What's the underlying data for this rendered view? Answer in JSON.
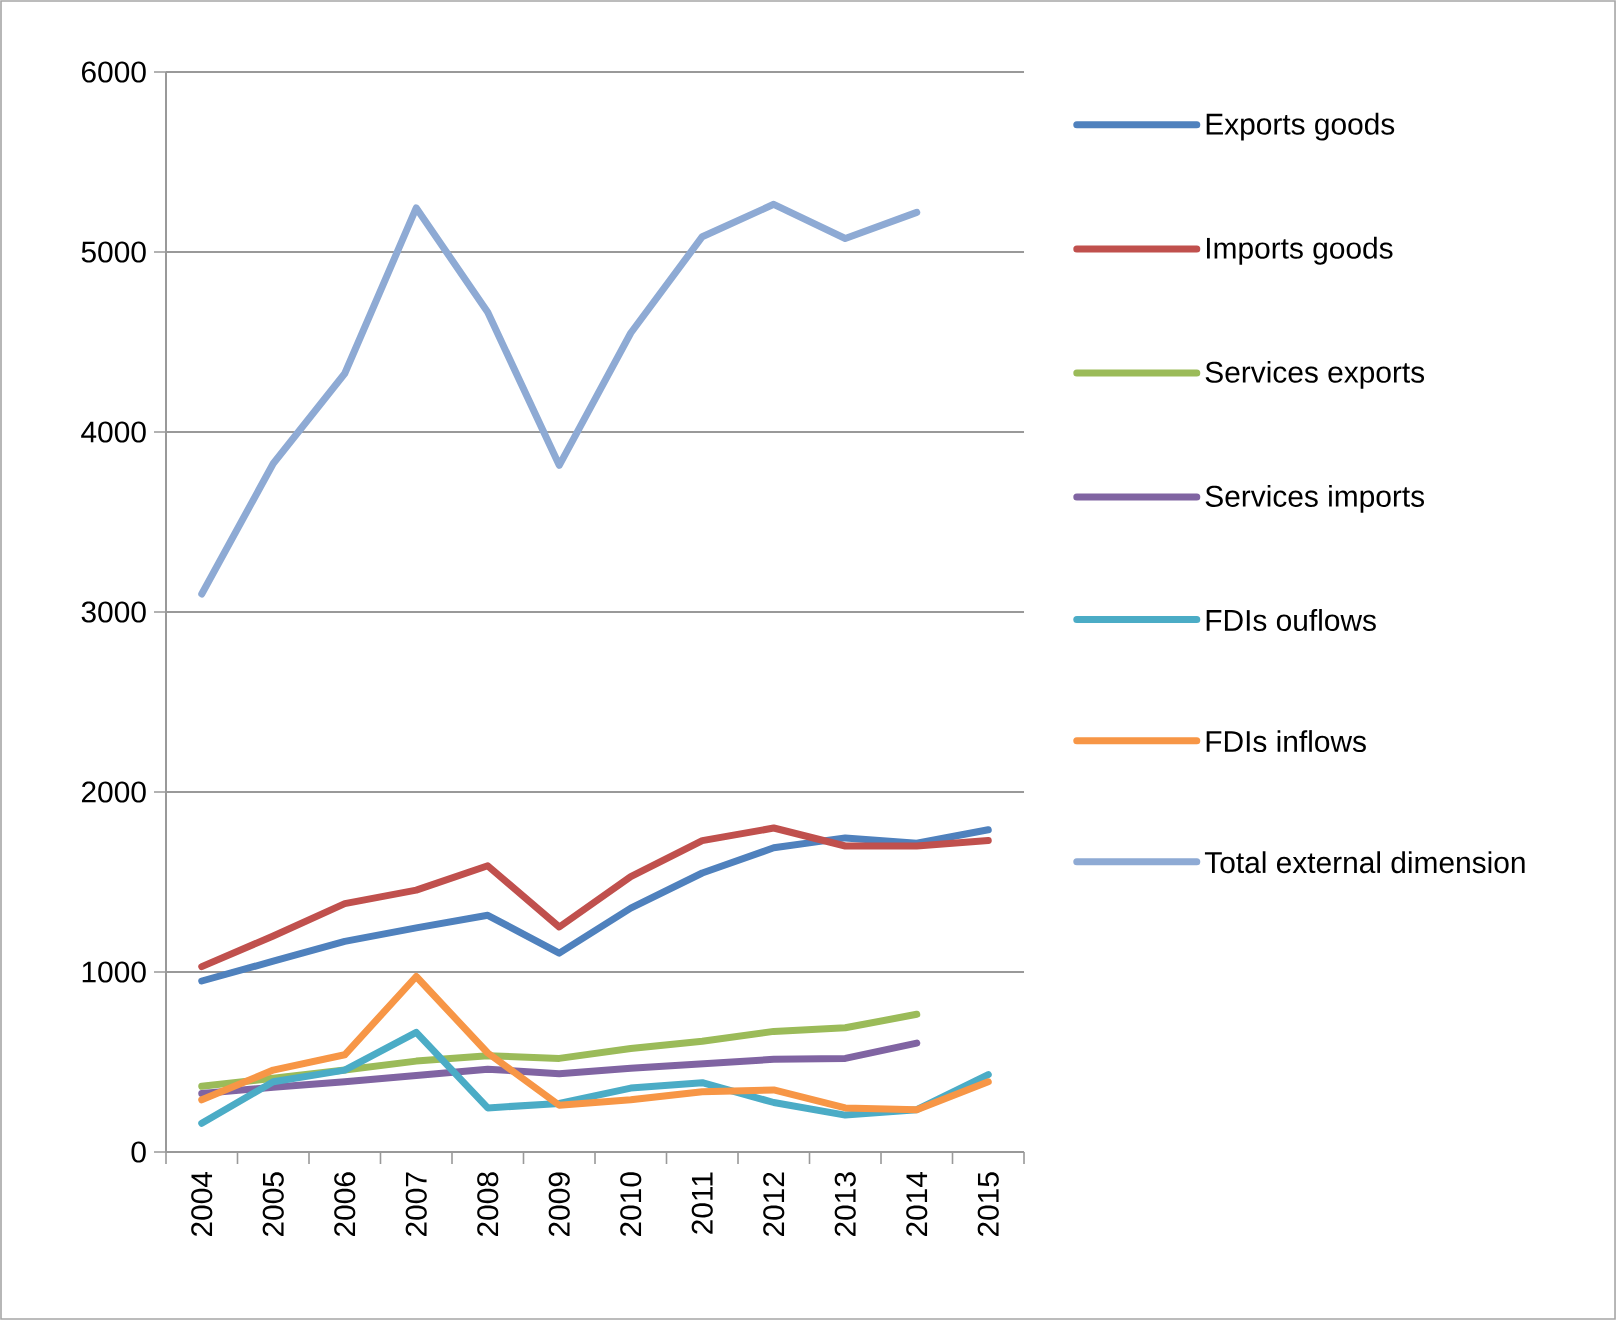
{
  "chart_data": {
    "type": "line",
    "categories": [
      "2004",
      "2005",
      "2006",
      "2007",
      "2008",
      "2009",
      "2010",
      "2011",
      "2012",
      "2013",
      "2014",
      "2015"
    ],
    "ylim": [
      0,
      6000
    ],
    "yticks": [
      0,
      1000,
      2000,
      3000,
      4000,
      5000,
      6000
    ],
    "grid": "y",
    "legend": "right",
    "line_style": "solid",
    "marker": "none",
    "series": [
      {
        "name": "Exports goods",
        "color": "#4f81bd",
        "values": [
          950,
          1060,
          1170,
          1245,
          1315,
          1105,
          1355,
          1550,
          1690,
          1745,
          1715,
          1790
        ]
      },
      {
        "name": "Imports goods",
        "color": "#c0504d",
        "values": [
          1030,
          1200,
          1380,
          1455,
          1590,
          1250,
          1530,
          1730,
          1800,
          1700,
          1700,
          1730
        ]
      },
      {
        "name": "Services exports",
        "color": "#9bbb59",
        "values": [
          365,
          410,
          455,
          505,
          535,
          520,
          575,
          615,
          670,
          690,
          765,
          null
        ]
      },
      {
        "name": "Services imports",
        "color": "#8064a2",
        "values": [
          325,
          360,
          390,
          425,
          460,
          435,
          465,
          490,
          515,
          520,
          605,
          null
        ]
      },
      {
        "name": "FDIs ouflows",
        "color": "#4bacc6",
        "values": [
          160,
          390,
          455,
          665,
          245,
          270,
          355,
          385,
          275,
          205,
          235,
          430
        ]
      },
      {
        "name": "FDIs inflows",
        "color": "#f79646",
        "values": [
          290,
          455,
          540,
          975,
          550,
          260,
          290,
          335,
          345,
          245,
          235,
          390
        ]
      },
      {
        "name": "Total external dimension",
        "color": "#8eaad4",
        "values": [
          3100,
          3825,
          4325,
          5245,
          4665,
          3815,
          4550,
          5085,
          5265,
          5075,
          5220,
          null
        ]
      }
    ]
  }
}
